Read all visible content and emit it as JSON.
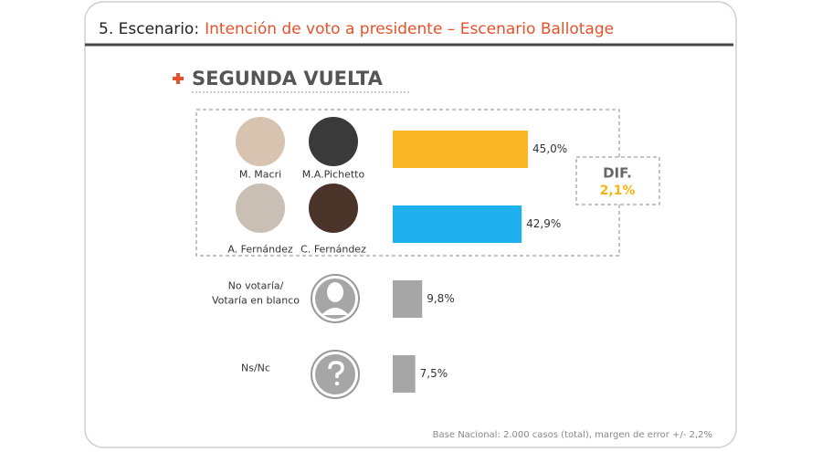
{
  "header": {
    "section": "5. Escenario:",
    "title": "Intención de voto a presidente – Escenario Ballotage"
  },
  "chart_data": {
    "type": "bar",
    "orientation": "horizontal",
    "title": "SEGUNDA VUELTA",
    "categories": [
      [
        "M. Macri",
        "M.A.Pichetto"
      ],
      [
        "A. Fernández",
        "C. Fernández"
      ],
      [
        "No votaría/",
        "Votaría en blanco"
      ],
      [
        "Ns/Nc"
      ]
    ],
    "values": [
      45.0,
      42.9,
      9.8,
      7.5
    ],
    "value_labels": [
      "45,0%",
      "42,9%",
      "9,8%",
      "7,5%"
    ],
    "colors": [
      "#fbb625",
      "#1fb0ee",
      "#a6a6a6",
      "#a6a6a6"
    ],
    "annotation": {
      "title": "DIF.",
      "value": "2,1%"
    }
  },
  "note": "Base Nacional: 2.000 casos (total), margen de error +/- 2,2%"
}
